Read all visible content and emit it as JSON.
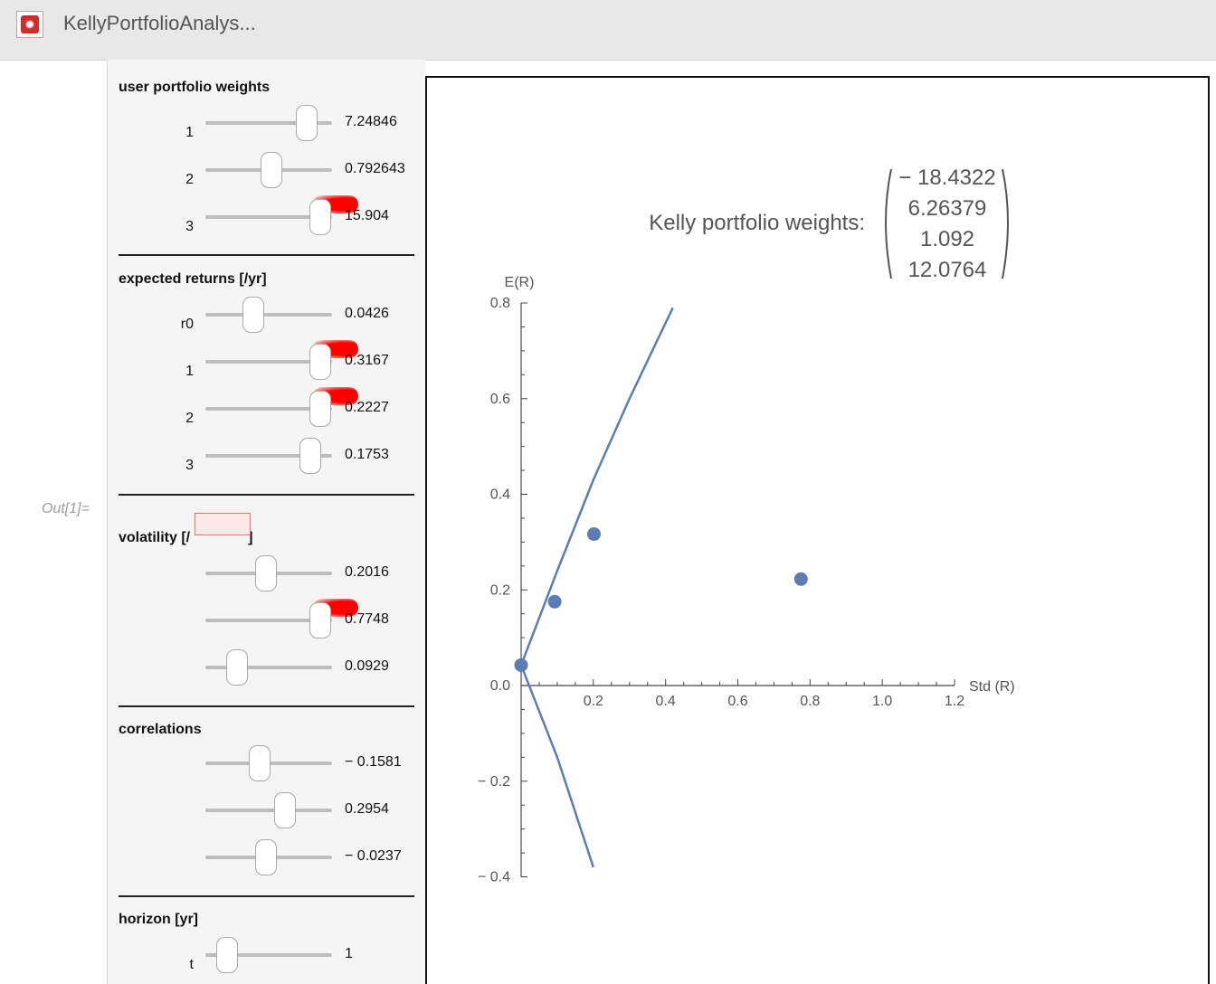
{
  "window": {
    "title": "KellyPortfolioAnalys..."
  },
  "out_label": "Out[1]=",
  "sections": {
    "weights": {
      "title": "user portfolio weights",
      "rows": [
        {
          "label": "1",
          "value": "7.24846",
          "pos": 0.8
        },
        {
          "label": "2",
          "value": "0.792643",
          "pos": 0.52
        },
        {
          "label": "3",
          "value": "15.904",
          "pos": 0.91,
          "overflow": true
        }
      ]
    },
    "returns": {
      "title": "expected returns [/yr]",
      "rows": [
        {
          "label": "r0",
          "value": "0.0426",
          "pos": 0.38
        },
        {
          "label": "1",
          "value": "0.3167",
          "pos": 0.91,
          "overflow": true
        },
        {
          "label": "2",
          "value": "0.2227",
          "pos": 0.91,
          "overflow": true
        },
        {
          "label": "3",
          "value": "0.1753",
          "pos": 0.83
        }
      ]
    },
    "volatility": {
      "title_start": "volatility [/",
      "title_end": "]",
      "rows": [
        {
          "label": "",
          "value": "0.2016",
          "pos": 0.48
        },
        {
          "label": "",
          "value": "0.7748",
          "pos": 0.91,
          "overflow": true
        },
        {
          "label": "",
          "value": "0.0929",
          "pos": 0.25
        }
      ]
    },
    "correlations": {
      "title": "correlations",
      "rows": [
        {
          "label": "",
          "value": "− 0.1581",
          "pos": 0.43
        },
        {
          "label": "",
          "value": "0.2954",
          "pos": 0.63
        },
        {
          "label": "",
          "value": "− 0.0237",
          "pos": 0.48
        }
      ]
    },
    "horizon": {
      "title": "horizon [yr]",
      "rows": [
        {
          "label": "t",
          "value": "1",
          "pos": 0.17
        }
      ]
    }
  },
  "kelly": {
    "label": "Kelly portfolio weights:",
    "values": [
      "− 18.4322",
      "6.26379",
      "1.092",
      "12.0764"
    ]
  },
  "chart_data": {
    "type": "scatter",
    "xlabel": "Std (R)",
    "ylabel": "E(R)",
    "xlim": [
      0,
      1.2
    ],
    "ylim": [
      -0.4,
      0.8
    ],
    "x_ticks": [
      "0.2",
      "0.4",
      "0.6",
      "0.8",
      "1.0",
      "1.2"
    ],
    "y_ticks": [
      "− 0.4",
      "− 0.2",
      "0.0",
      "0.2",
      "0.4",
      "0.6",
      "0.8"
    ],
    "points": [
      {
        "x": 0,
        "y": 0.0426
      },
      {
        "x": 0.0929,
        "y": 0.1753
      },
      {
        "x": 0.2016,
        "y": 0.3167
      },
      {
        "x": 0.7748,
        "y": 0.2227
      }
    ],
    "frontier_upper": [
      [
        0,
        0.0426
      ],
      [
        0.1,
        0.24
      ],
      [
        0.2,
        0.43
      ],
      [
        0.3,
        0.6
      ],
      [
        0.42,
        0.79
      ]
    ],
    "frontier_lower": [
      [
        0,
        0.0426
      ],
      [
        0.1,
        -0.15
      ],
      [
        0.2,
        -0.38
      ]
    ],
    "colors": {
      "series": "#5b7db4",
      "axis": "#444444"
    }
  }
}
